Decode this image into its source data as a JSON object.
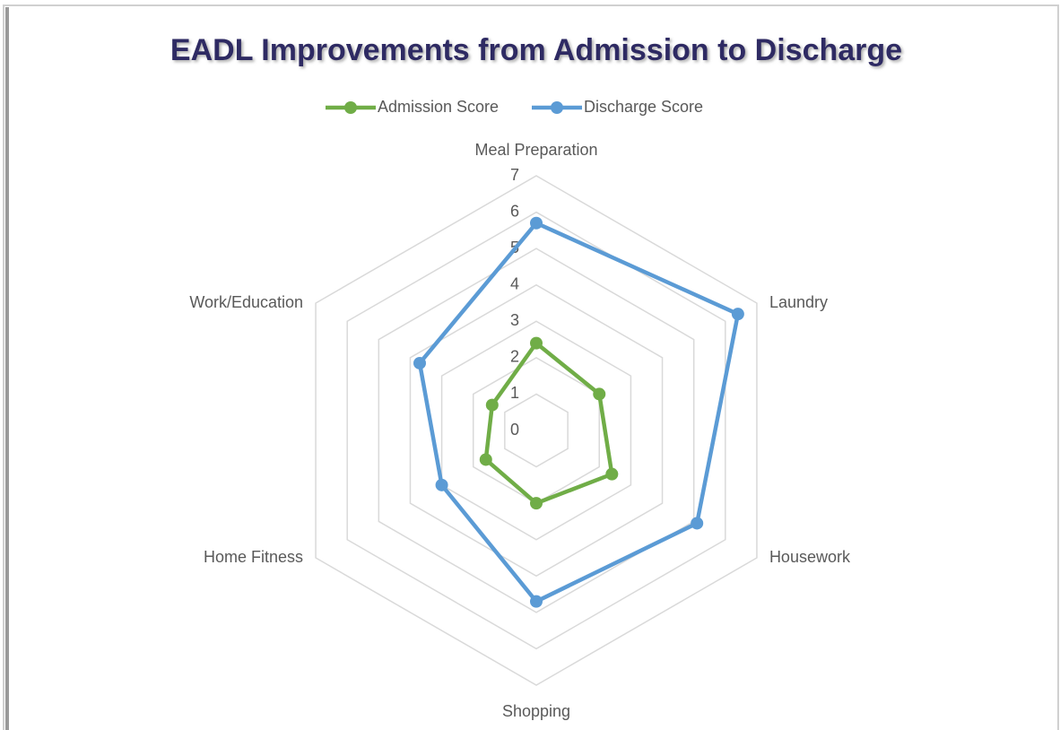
{
  "chart_data": {
    "type": "radar",
    "title": "EADL Improvements from Admission to Discharge",
    "categories": [
      "Meal Preparation",
      "Laundry",
      "Housework",
      "Shopping",
      "Home Fitness",
      "Work/Education"
    ],
    "series": [
      {
        "name": "Admission Score",
        "color": "#70ad47",
        "values": [
          2.4,
          2.0,
          2.4,
          2.0,
          1.6,
          1.4
        ]
      },
      {
        "name": "Discharge Score",
        "color": "#5b9bd5",
        "values": [
          5.7,
          6.4,
          5.1,
          4.7,
          3.0,
          3.7
        ]
      }
    ],
    "ylim": [
      0,
      7
    ],
    "yticks": [
      0,
      1,
      2,
      3,
      4,
      5,
      6,
      7
    ],
    "grid": true,
    "legend": "top"
  }
}
